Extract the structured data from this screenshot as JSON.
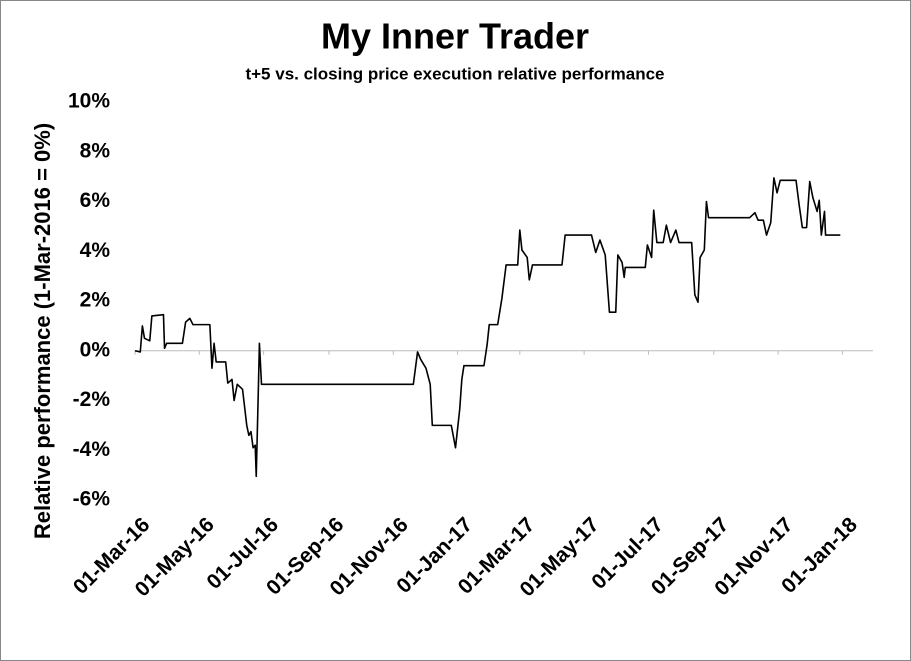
{
  "chart_data": {
    "type": "line",
    "title": "My Inner Trader",
    "subtitle": "t+5 vs. closing price execution relative performance",
    "y_label": "Relative performance (1-Mar-2016 = 0%)",
    "x": [
      "2016-03-01",
      "2016-03-06",
      "2016-03-08",
      "2016-03-10",
      "2016-03-15",
      "2016-03-17",
      "2016-03-28",
      "2016-03-29",
      "2016-03-31",
      "2016-04-15",
      "2016-04-18",
      "2016-04-22",
      "2016-04-25",
      "2016-05-11",
      "2016-05-13",
      "2016-05-15",
      "2016-05-17",
      "2016-05-26",
      "2016-05-28",
      "2016-06-01",
      "2016-06-03",
      "2016-06-06",
      "2016-06-11",
      "2016-06-15",
      "2016-06-17",
      "2016-06-19",
      "2016-06-21",
      "2016-06-23",
      "2016-06-24",
      "2016-06-26",
      "2016-06-27",
      "2016-06-29",
      "2016-11-20",
      "2016-11-24",
      "2016-11-27",
      "2016-12-02",
      "2016-12-06",
      "2016-12-08",
      "2016-12-26",
      "2016-12-30",
      "2017-01-03",
      "2017-01-05",
      "2017-01-07",
      "2017-01-26",
      "2017-01-29",
      "2017-01-31",
      "2017-02-08",
      "2017-02-12",
      "2017-02-16",
      "2017-02-27",
      "2017-03-01",
      "2017-03-03",
      "2017-03-08",
      "2017-03-10",
      "2017-03-13",
      "2017-03-20",
      "2017-04-10",
      "2017-04-13",
      "2017-05-08",
      "2017-05-12",
      "2017-05-16",
      "2017-05-21",
      "2017-05-25",
      "2017-05-31",
      "2017-06-02",
      "2017-06-06",
      "2017-06-08",
      "2017-06-09",
      "2017-06-28",
      "2017-06-30",
      "2017-07-04",
      "2017-07-06",
      "2017-07-09",
      "2017-07-15",
      "2017-07-18",
      "2017-07-22",
      "2017-07-27",
      "2017-07-30",
      "2017-08-11",
      "2017-08-14",
      "2017-08-17",
      "2017-08-19",
      "2017-08-23",
      "2017-08-25",
      "2017-08-27",
      "2017-10-05",
      "2017-10-10",
      "2017-10-13",
      "2017-10-18",
      "2017-10-21",
      "2017-10-25",
      "2017-10-28",
      "2017-10-31",
      "2017-11-03",
      "2017-11-18",
      "2017-11-21",
      "2017-11-24",
      "2017-11-28",
      "2017-12-01",
      "2017-12-04",
      "2017-12-08",
      "2017-12-10",
      "2017-12-12",
      "2017-12-15",
      "2017-12-16",
      "2017-12-30"
    ],
    "series": [
      {
        "color": "#000000",
        "values": [
          0,
          -0.05,
          1.0,
          0.5,
          0.4,
          1.4,
          1.45,
          0.1,
          0.3,
          0.3,
          1.15,
          1.3,
          1.05,
          1.05,
          -0.7,
          0.3,
          -0.45,
          -0.45,
          -1.3,
          -1.15,
          -2.0,
          -1.35,
          -1.55,
          -3.0,
          -3.4,
          -3.25,
          -3.9,
          -3.8,
          -5.05,
          -1.55,
          0.3,
          -1.35,
          -1.35,
          -0.05,
          -0.35,
          -0.7,
          -1.35,
          -3.0,
          -3.0,
          -3.9,
          -2.35,
          -1.15,
          -0.6,
          -0.6,
          0.25,
          1.05,
          1.05,
          2.1,
          3.45,
          3.45,
          4.85,
          4.05,
          3.75,
          2.85,
          3.45,
          3.45,
          3.45,
          4.65,
          4.65,
          3.95,
          4.45,
          3.85,
          1.55,
          1.55,
          3.85,
          3.55,
          2.95,
          3.35,
          3.35,
          4.25,
          3.75,
          5.65,
          4.35,
          4.35,
          5.05,
          4.35,
          4.85,
          4.35,
          4.35,
          2.25,
          1.95,
          3.75,
          4.05,
          6.0,
          5.35,
          5.35,
          5.55,
          5.25,
          5.25,
          4.65,
          5.15,
          6.95,
          6.35,
          6.85,
          6.85,
          5.85,
          4.95,
          4.95,
          6.8,
          6.15,
          5.6,
          6.05,
          4.65,
          5.6,
          4.65,
          4.65
        ]
      }
    ],
    "xlim": [
      "2016-03-01",
      "2018-01-30"
    ],
    "xticks": [
      {
        "value": "2016-03-01",
        "label": "01-Mar-16"
      },
      {
        "value": "2016-05-01",
        "label": "01-May-16"
      },
      {
        "value": "2016-07-01",
        "label": "01-Jul-16"
      },
      {
        "value": "2016-09-01",
        "label": "01-Sep-16"
      },
      {
        "value": "2016-11-01",
        "label": "01-Nov-16"
      },
      {
        "value": "2017-01-01",
        "label": "01-Jan-17"
      },
      {
        "value": "2017-03-01",
        "label": "01-Mar-17"
      },
      {
        "value": "2017-05-01",
        "label": "01-May-17"
      },
      {
        "value": "2017-07-01",
        "label": "01-Jul-17"
      },
      {
        "value": "2017-09-01",
        "label": "01-Sep-17"
      },
      {
        "value": "2017-11-01",
        "label": "01-Nov-17"
      },
      {
        "value": "2018-01-01",
        "label": "01-Jan-18"
      }
    ],
    "ylim": [
      -6,
      10
    ],
    "yticks": [
      {
        "value": -6,
        "label": "-6%"
      },
      {
        "value": -4,
        "label": "-4%"
      },
      {
        "value": -2,
        "label": "-2%"
      },
      {
        "value": 0,
        "label": "0%"
      },
      {
        "value": 2,
        "label": "2%"
      },
      {
        "value": 4,
        "label": "4%"
      },
      {
        "value": 6,
        "label": "6%"
      },
      {
        "value": 8,
        "label": "8%"
      },
      {
        "value": 10,
        "label": "10%"
      }
    ],
    "grid": false
  }
}
